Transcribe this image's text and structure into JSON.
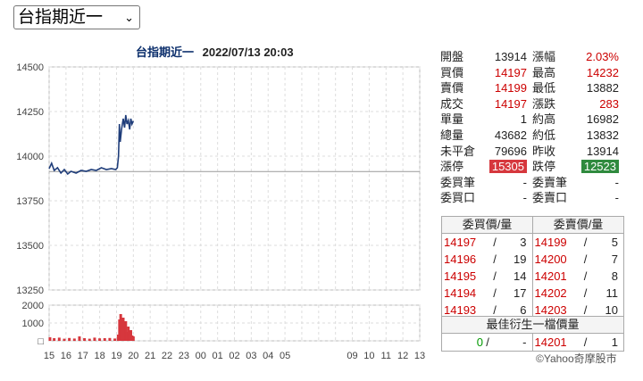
{
  "selector": {
    "value": "台指期近一"
  },
  "chart": {
    "title": "台指期近一",
    "timestamp": "2022/07/13 20:03"
  },
  "chart_data": {
    "type": "line",
    "y_price_ticks": [
      "14500",
      "14250",
      "14000",
      "13750",
      "13500",
      "13250"
    ],
    "y_volume_ticks": [
      "2000",
      "1000",
      "□"
    ],
    "x_ticks": [
      "15",
      "16",
      "17",
      "18",
      "19",
      "20",
      "21",
      "22",
      "23",
      "00",
      "01",
      "02",
      "03",
      "04",
      "05",
      "06",
      "07",
      "08",
      "09",
      "10",
      "11",
      "12",
      "13"
    ],
    "x_tick_labels": [
      "15",
      "16",
      "17",
      "18",
      "19",
      "20",
      "21",
      "22",
      "23",
      "00",
      "01",
      "02",
      "03",
      "04",
      "05",
      "",
      "",
      "",
      "09",
      "10",
      "11",
      "12",
      "13"
    ],
    "ylim_price": [
      13250,
      14500
    ],
    "ylim_volume": [
      0,
      2000
    ],
    "reference_price": 13914,
    "price_series": [
      [
        0.0,
        13930
      ],
      [
        0.15,
        13960
      ],
      [
        0.3,
        13920
      ],
      [
        0.5,
        13935
      ],
      [
        0.7,
        13905
      ],
      [
        0.9,
        13925
      ],
      [
        1.1,
        13900
      ],
      [
        1.3,
        13915
      ],
      [
        1.6,
        13905
      ],
      [
        1.9,
        13920
      ],
      [
        2.2,
        13915
      ],
      [
        2.5,
        13925
      ],
      [
        2.8,
        13920
      ],
      [
        3.1,
        13935
      ],
      [
        3.4,
        13925
      ],
      [
        3.7,
        13930
      ],
      [
        3.95,
        13925
      ],
      [
        4.05,
        13935
      ],
      [
        4.12,
        14000
      ],
      [
        4.17,
        14180
      ],
      [
        4.22,
        14080
      ],
      [
        4.3,
        14150
      ],
      [
        4.4,
        14210
      ],
      [
        4.48,
        14160
      ],
      [
        4.55,
        14230
      ],
      [
        4.62,
        14180
      ],
      [
        4.7,
        14200
      ],
      [
        4.78,
        14150
      ],
      [
        4.85,
        14210
      ],
      [
        4.92,
        14180
      ],
      [
        5.0,
        14197
      ]
    ],
    "volume_series": [
      [
        0.05,
        200
      ],
      [
        0.3,
        150
      ],
      [
        0.6,
        180
      ],
      [
        0.9,
        120
      ],
      [
        1.2,
        160
      ],
      [
        1.5,
        130
      ],
      [
        1.8,
        250
      ],
      [
        2.1,
        150
      ],
      [
        2.4,
        120
      ],
      [
        2.7,
        180
      ],
      [
        3.0,
        140
      ],
      [
        3.3,
        150
      ],
      [
        3.6,
        160
      ],
      [
        3.9,
        130
      ],
      [
        4.1,
        350
      ],
      [
        4.18,
        1200
      ],
      [
        4.25,
        1500
      ],
      [
        4.32,
        900
      ],
      [
        4.4,
        1300
      ],
      [
        4.48,
        700
      ],
      [
        4.55,
        1100
      ],
      [
        4.62,
        500
      ],
      [
        4.7,
        800
      ],
      [
        4.78,
        400
      ],
      [
        4.85,
        600
      ],
      [
        4.93,
        300
      ],
      [
        5.0,
        250
      ]
    ]
  },
  "quote": {
    "rows": [
      {
        "l1": "開盤",
        "v1": "13914",
        "c1": "blk",
        "l2": "漲幅",
        "v2": "2.03%",
        "c2": "red"
      },
      {
        "l1": "買價",
        "v1": "14197",
        "c1": "red",
        "l2": "最高",
        "v2": "14232",
        "c2": "red"
      },
      {
        "l1": "賣價",
        "v1": "14199",
        "c1": "red",
        "l2": "最低",
        "v2": "13882",
        "c2": "blk"
      },
      {
        "l1": "成交",
        "v1": "14197",
        "c1": "red",
        "l2": "漲跌",
        "v2": "283",
        "c2": "red"
      },
      {
        "l1": "單量",
        "v1": "1",
        "c1": "blk",
        "l2": "約高",
        "v2": "16982",
        "c2": "blk"
      },
      {
        "l1": "總量",
        "v1": "43682",
        "c1": "blk",
        "l2": "約低",
        "v2": "13832",
        "c2": "blk"
      },
      {
        "l1": "未平倉",
        "v1": "79696",
        "c1": "blk",
        "l2": "昨收",
        "v2": "13914",
        "c2": "blk"
      },
      {
        "l1": "漲停",
        "v1": "15305",
        "c1": "limit-up",
        "l2": "跌停",
        "v2": "12523",
        "c2": "limit-dn"
      },
      {
        "l1": "委買筆",
        "v1": "-",
        "c1": "blk",
        "l2": "委賣筆",
        "v2": "-",
        "c2": "blk"
      },
      {
        "l1": "委買口",
        "v1": "-",
        "c1": "blk",
        "l2": "委賣口",
        "v2": "-",
        "c2": "blk"
      }
    ]
  },
  "order_book": {
    "bid_header": "委買價/量",
    "ask_header": "委賣價/量",
    "rows": [
      {
        "bid": "14197",
        "bq": "3",
        "ask": "14199",
        "aq": "5"
      },
      {
        "bid": "14196",
        "bq": "19",
        "ask": "14200",
        "aq": "7"
      },
      {
        "bid": "14195",
        "bq": "14",
        "ask": "14201",
        "aq": "8"
      },
      {
        "bid": "14194",
        "bq": "17",
        "ask": "14202",
        "aq": "11"
      },
      {
        "bid": "14193",
        "bq": "6",
        "ask": "14203",
        "aq": "10"
      }
    ],
    "slash": "/"
  },
  "best": {
    "title": "最佳衍生一檔價量",
    "bid": "0",
    "bq": "-",
    "ask": "14201",
    "aq": "1"
  },
  "credit": "©Yahoo奇摩股市",
  "colors": {
    "up": "#cc0000",
    "line": "#1f3d7a",
    "volume": "#d6373d",
    "ref": "#999999"
  }
}
